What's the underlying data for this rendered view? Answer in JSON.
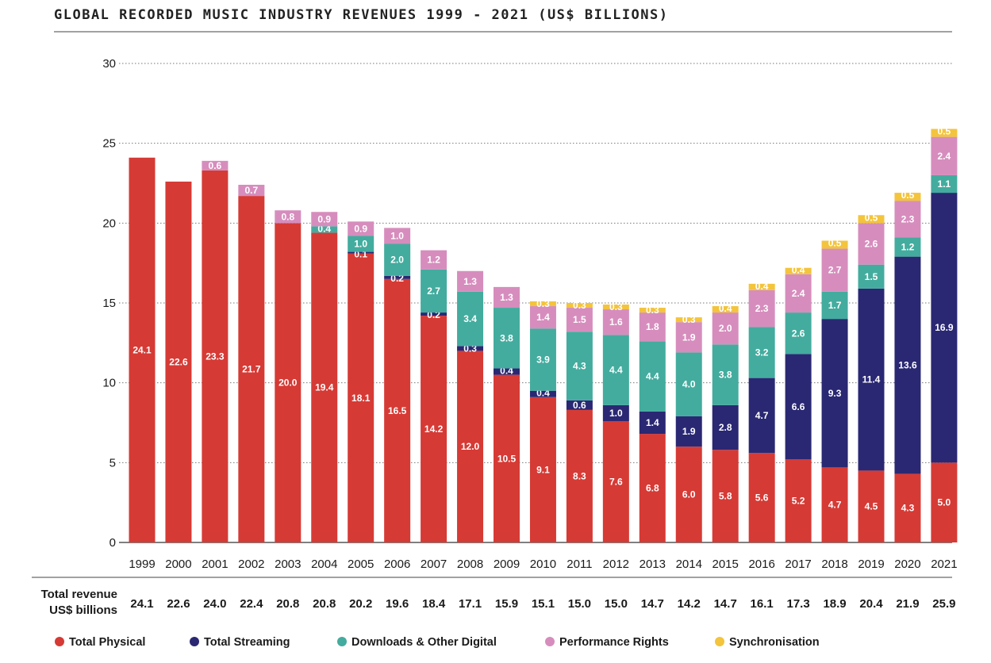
{
  "page": {
    "title": "GLOBAL RECORDED MUSIC INDUSTRY REVENUES 1999 - 2021 (US$ BILLIONS)",
    "total_label_line1": "Total revenue",
    "total_label_line2": "US$ billions"
  },
  "chart_data": {
    "type": "bar",
    "stacked": true,
    "title": "GLOBAL RECORDED MUSIC INDUSTRY REVENUES 1999 - 2021 (US$ BILLIONS)",
    "ylim": [
      0,
      30
    ],
    "yticks": [
      0,
      5,
      10,
      15,
      20,
      25,
      30
    ],
    "grid": true,
    "legend_position": "bottom",
    "categories": [
      "1999",
      "2000",
      "2001",
      "2002",
      "2003",
      "2004",
      "2005",
      "2006",
      "2007",
      "2008",
      "2009",
      "2010",
      "2011",
      "2012",
      "2013",
      "2014",
      "2015",
      "2016",
      "2017",
      "2018",
      "2019",
      "2020",
      "2021"
    ],
    "series": [
      {
        "name": "Total Physical",
        "color": "#d63a35",
        "values": [
          24.1,
          22.6,
          23.3,
          21.7,
          20.0,
          19.4,
          18.1,
          16.5,
          14.2,
          12.0,
          10.5,
          9.1,
          8.3,
          7.6,
          6.8,
          6.0,
          5.8,
          5.6,
          5.2,
          4.7,
          4.5,
          4.3,
          5.0
        ]
      },
      {
        "name": "Total Streaming",
        "color": "#2a2873",
        "values": [
          null,
          null,
          null,
          null,
          null,
          null,
          0.1,
          0.2,
          0.2,
          0.3,
          0.4,
          0.4,
          0.6,
          1.0,
          1.4,
          1.9,
          2.8,
          4.7,
          6.6,
          9.3,
          11.4,
          13.6,
          16.9
        ]
      },
      {
        "name": "Downloads & Other Digital",
        "color": "#43ac9e",
        "values": [
          null,
          null,
          null,
          null,
          null,
          0.4,
          1.0,
          2.0,
          2.7,
          3.4,
          3.8,
          3.9,
          4.3,
          4.4,
          4.4,
          4.0,
          3.8,
          3.2,
          2.6,
          1.7,
          1.5,
          1.2,
          1.1
        ]
      },
      {
        "name": "Performance Rights",
        "color": "#d68dbd",
        "values": [
          null,
          null,
          0.6,
          0.7,
          0.8,
          0.9,
          0.9,
          1.0,
          1.2,
          1.3,
          1.3,
          1.4,
          1.5,
          1.6,
          1.8,
          1.9,
          2.0,
          2.3,
          2.4,
          2.7,
          2.6,
          2.3,
          2.4
        ]
      },
      {
        "name": "Synchronisation",
        "color": "#f3c43c",
        "values": [
          null,
          null,
          null,
          null,
          null,
          null,
          null,
          null,
          null,
          null,
          null,
          0.3,
          0.3,
          0.3,
          0.3,
          0.3,
          0.4,
          0.4,
          0.4,
          0.5,
          0.5,
          0.5,
          0.5
        ]
      }
    ],
    "totals": [
      "24.1",
      "22.6",
      "24.0",
      "22.4",
      "20.8",
      "20.8",
      "20.2",
      "19.6",
      "18.4",
      "17.1",
      "15.9",
      "15.1",
      "15.0",
      "15.0",
      "14.7",
      "14.2",
      "14.7",
      "16.1",
      "17.3",
      "18.9",
      "20.4",
      "21.9",
      "25.9"
    ]
  }
}
